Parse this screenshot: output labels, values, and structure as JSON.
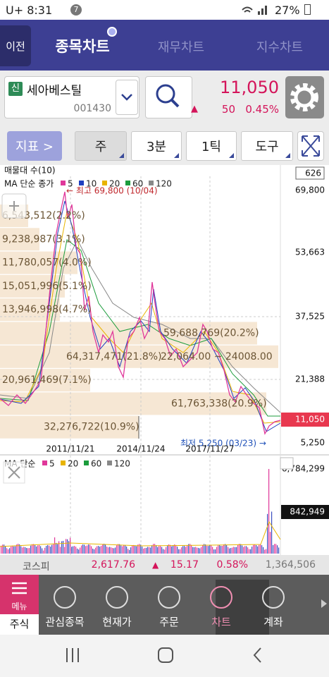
{
  "status_bar": {
    "carrier_time": "U+ 8:31",
    "badge": "7",
    "battery": "27%"
  },
  "tabs": {
    "back": "이전",
    "items": [
      "종목차트",
      "재무차트",
      "지수차트"
    ]
  },
  "stock": {
    "badge": "신",
    "name": "세아베스틸",
    "code": "001430",
    "price": "11,050",
    "change_sign": "▲",
    "change": "50",
    "rate": "0.45%"
  },
  "toolbar": {
    "indicator": "지표 >",
    "items": [
      "주",
      "3분",
      "1틱",
      "도구"
    ]
  },
  "price_chart": {
    "profile_title": "매물대 수(10)",
    "profile_count": "626",
    "ma_title": "MA 단순 종가",
    "ma_legend": [
      {
        "label": "5",
        "color": "#e0379a"
      },
      {
        "label": "10",
        "color": "#1f3fbf"
      },
      {
        "label": "20",
        "color": "#e8b400"
      },
      {
        "label": "60",
        "color": "#1c9c3c"
      },
      {
        "label": "120",
        "color": "#888888"
      }
    ],
    "high": "← 최고 69,800 (10/04)",
    "low": "최저 5,250 (03/23) →",
    "axis_labels": [
      "69,800",
      "53,663",
      "37,525",
      "21,388",
      "5,250"
    ],
    "current": "11,050",
    "dates": [
      "2011/11/21",
      "2014/11/24",
      "2017/11/27"
    ],
    "profile": [
      "6,543,512(2.2%)",
      "9,238,987(3.1%)",
      "11,780,057(4.0%)",
      "15,051,996(5.1%)",
      "13,946,998(4.7%)",
      "59,688,769(20.2%)",
      "64,317,471(21.8%)",
      "20,961,469(7.1%)",
      "61,763,338(20.9%)",
      "32,276,722(10.9%)"
    ],
    "range": "22,064.00 ~ 24008.00"
  },
  "volume_chart": {
    "ma_title": "MA 단순",
    "ma_legend": [
      {
        "label": "5",
        "color": "#e0379a"
      },
      {
        "label": "20",
        "color": "#e8b400"
      },
      {
        "label": "60",
        "color": "#1c9c3c"
      },
      {
        "label": "120",
        "color": "#888888"
      }
    ],
    "max": "6,784,299",
    "current": "842,949"
  },
  "index_bar": {
    "name": "코스피",
    "value": "2,617.76",
    "sign": "▲",
    "change": "15.17",
    "rate": "0.58%",
    "volume": "1,364,506"
  },
  "bottom_nav": {
    "menu": "메뉴",
    "active": "주식",
    "items": [
      "관심종목",
      "현재가",
      "주문",
      "차트",
      "계좌"
    ]
  }
}
